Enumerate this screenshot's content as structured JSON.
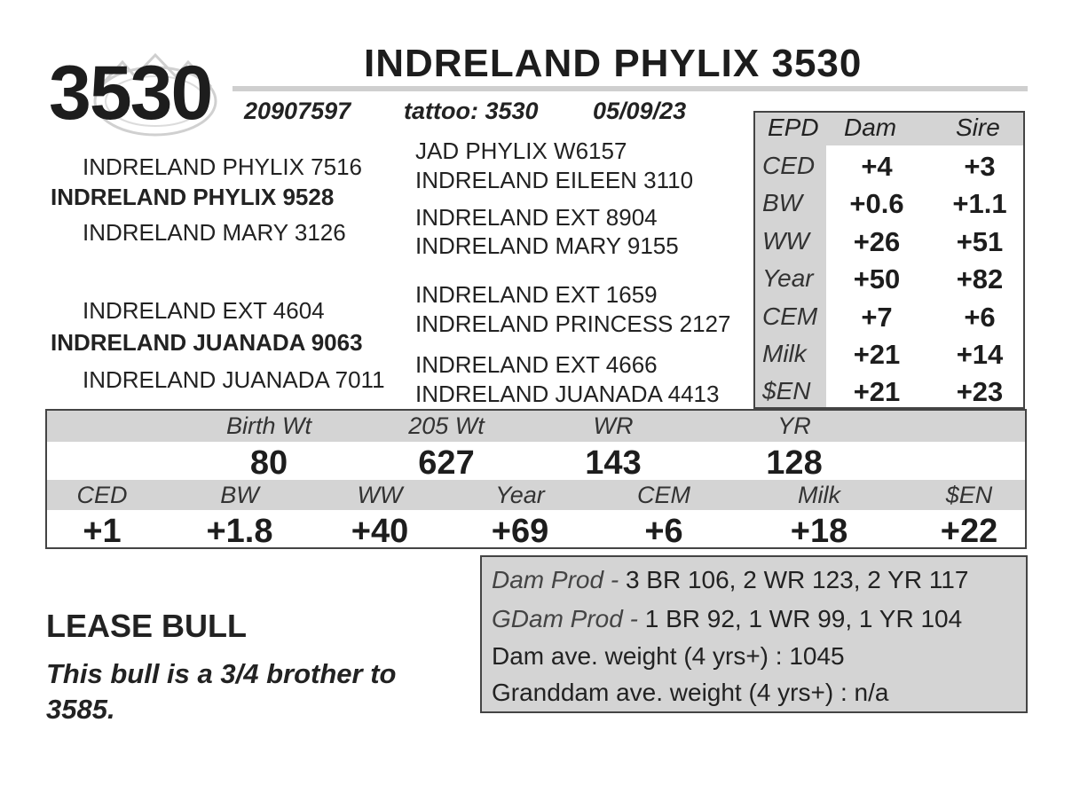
{
  "header": {
    "number": "3530",
    "name": "INDRELAND PHYLIX 3530",
    "registration": "20907597",
    "tattoo": "tattoo: 3530",
    "birth_date": "05/09/23"
  },
  "pedigree": {
    "sire": "INDRELAND PHYLIX 9528",
    "sire_sire": "INDRELAND PHYLIX 7516",
    "sire_dam": "INDRELAND MARY 3126",
    "sire_sire_sire": "JAD PHYLIX W6157",
    "sire_sire_dam": "INDRELAND EILEEN 3110",
    "sire_dam_sire": "INDRELAND EXT 8904",
    "sire_dam_dam": "INDRELAND MARY 9155",
    "dam": "INDRELAND JUANADA 9063",
    "dam_sire": "INDRELAND EXT 4604",
    "dam_dam": "INDRELAND JUANADA 7011",
    "dam_sire_sire": "INDRELAND EXT 1659",
    "dam_sire_dam": "INDRELAND PRINCESS 2127",
    "dam_dam_sire": "INDRELAND EXT 4666",
    "dam_dam_dam": "INDRELAND JUANADA 4413"
  },
  "epd_table": {
    "headers": [
      "EPD",
      "Dam",
      "Sire"
    ],
    "rows": [
      {
        "label": "CED",
        "dam": "+4",
        "sire": "+3"
      },
      {
        "label": "BW",
        "dam": "+0.6",
        "sire": "+1.1"
      },
      {
        "label": "WW",
        "dam": "+26",
        "sire": "+51"
      },
      {
        "label": "Year",
        "dam": "+50",
        "sire": "+82"
      },
      {
        "label": "CEM",
        "dam": "+7",
        "sire": "+6"
      },
      {
        "label": "Milk",
        "dam": "+21",
        "sire": "+14"
      },
      {
        "label": "$EN",
        "dam": "+21",
        "sire": "+23"
      }
    ]
  },
  "performance": {
    "headers": [
      "Birth Wt",
      "205 Wt",
      "WR",
      "YR"
    ],
    "values": [
      "80",
      "627",
      "143",
      "128"
    ]
  },
  "bull_epds": {
    "headers": [
      "CED",
      "BW",
      "WW",
      "Year",
      "CEM",
      "Milk",
      "$EN"
    ],
    "values": [
      "+1",
      "+1.8",
      "+40",
      "+69",
      "+6",
      "+18",
      "+22"
    ]
  },
  "lease": {
    "title": "LEASE BULL",
    "note": "This bull is a 3/4 brother to 3585."
  },
  "production": {
    "dam_label": "Dam Prod -",
    "dam_value": "3 BR 106, 2 WR 123, 2 YR 117",
    "gdam_label": "GDam Prod -",
    "gdam_value": "1 BR 92, 1 WR 99, 1 YR 104",
    "dam_weight": "Dam ave. weight (4 yrs+) : 1045",
    "granddam_weight": "Granddam ave. weight (4 yrs+) : n/a"
  },
  "logo": {
    "icon": "ranch-logo-icon",
    "color": "#c8c8c8"
  }
}
